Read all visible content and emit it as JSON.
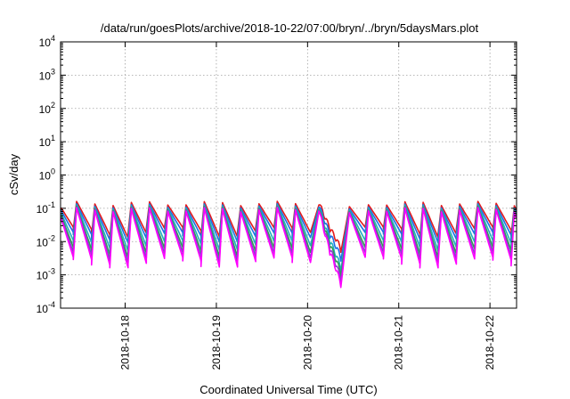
{
  "chart_data": {
    "type": "line",
    "title": "/data/run/goesPlots/archive/2018-10-22/07:00/bryn/../bryn/5daysMars.plot",
    "xlabel": "Coordinated Universal Time (UTC)",
    "ylabel": "cSv/day",
    "yscale": "log",
    "ylim": [
      0.0001,
      10000
    ],
    "xlim": [
      "2018-10-17T07:00",
      "2018-10-22T07:00"
    ],
    "y_ticks": [
      {
        "base": "10",
        "exp": "-4",
        "value": 0.0001
      },
      {
        "base": "10",
        "exp": "-3",
        "value": 0.001
      },
      {
        "base": "10",
        "exp": "-2",
        "value": 0.01
      },
      {
        "base": "10",
        "exp": "-1",
        "value": 0.1
      },
      {
        "base": "10",
        "exp": "0",
        "value": 1
      },
      {
        "base": "10",
        "exp": "1",
        "value": 10
      },
      {
        "base": "10",
        "exp": "2",
        "value": 100
      },
      {
        "base": "10",
        "exp": "3",
        "value": 1000
      },
      {
        "base": "10",
        "exp": "4",
        "value": 10000
      }
    ],
    "x_ticks": [
      "2018-10-18",
      "2018-10-19",
      "2018-10-20",
      "2018-10-21",
      "2018-10-22"
    ],
    "grid": true,
    "legend": "none",
    "dip_window": [
      "2018-10-20T03:00",
      "2018-10-20T11:00"
    ],
    "dip_min": {
      "red": 0.0048,
      "blue": 0.0026,
      "teal": 0.0013,
      "green": 0.0009,
      "purple": 0.0006,
      "magenta": 0.00042
    },
    "period_hours": 4.8,
    "series": [
      {
        "key": "red",
        "color": "#e41a1c",
        "peak": 0.14,
        "trough": 0.02
      },
      {
        "key": "blue",
        "color": "#1e6fe6",
        "peak": 0.12,
        "trough": 0.014
      },
      {
        "key": "teal",
        "color": "#20b0c0",
        "peak": 0.11,
        "trough": 0.008
      },
      {
        "key": "green",
        "color": "#2e9e52",
        "peak": 0.1,
        "trough": 0.005
      },
      {
        "key": "purple",
        "color": "#8b3fd0",
        "peak": 0.095,
        "trough": 0.0035
      },
      {
        "key": "magenta",
        "color": "#ff00ff",
        "peak": 0.09,
        "trough": 0.0025
      }
    ]
  }
}
